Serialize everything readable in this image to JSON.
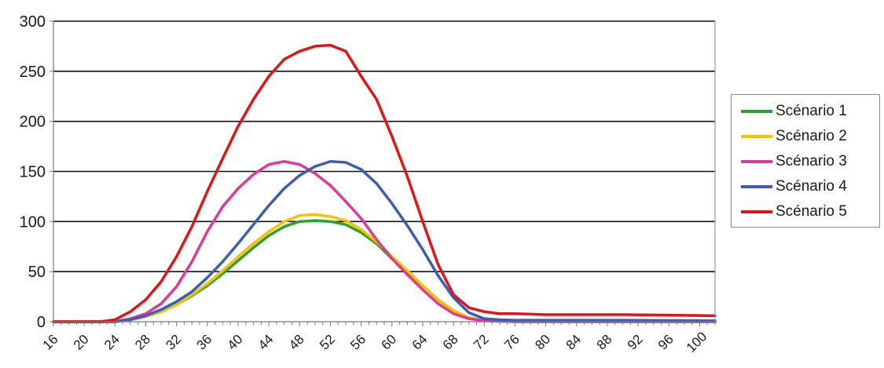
{
  "chart_data": {
    "type": "line",
    "title": "",
    "xlabel": "",
    "ylabel": "",
    "xlim": [
      16,
      102
    ],
    "ylim": [
      0,
      300
    ],
    "y_ticks": [
      0,
      50,
      100,
      150,
      200,
      250,
      300
    ],
    "x_ticks": [
      16,
      20,
      24,
      28,
      32,
      36,
      40,
      44,
      48,
      52,
      56,
      60,
      64,
      68,
      72,
      76,
      80,
      84,
      88,
      92,
      96,
      100
    ],
    "grid": "horizontal",
    "legend_position": "right",
    "series": [
      {
        "name": "Scénario 1",
        "color": "#2aa12a",
        "x": [
          16,
          22,
          24,
          26,
          28,
          30,
          32,
          34,
          36,
          38,
          40,
          42,
          44,
          46,
          48,
          50,
          52,
          54,
          56,
          58,
          60,
          62,
          64,
          66,
          68,
          70,
          72,
          74,
          76,
          80,
          90,
          102
        ],
        "y": [
          0,
          0,
          0,
          2,
          5,
          10,
          17,
          26,
          36,
          48,
          61,
          74,
          86,
          95,
          100,
          101,
          100,
          97,
          89,
          78,
          63,
          50,
          36,
          22,
          11,
          4,
          1,
          0.5,
          0,
          0,
          0,
          0
        ]
      },
      {
        "name": "Scénario 2",
        "color": "#f5c400",
        "x": [
          16,
          22,
          24,
          26,
          28,
          30,
          32,
          34,
          36,
          38,
          40,
          42,
          44,
          46,
          48,
          50,
          52,
          54,
          56,
          58,
          60,
          62,
          64,
          66,
          68,
          70,
          72,
          74,
          76,
          80,
          90,
          102
        ],
        "y": [
          0,
          0,
          0,
          2,
          5,
          10,
          17,
          27,
          38,
          51,
          65,
          78,
          90,
          100,
          106,
          107,
          105,
          101,
          92,
          80,
          65,
          51,
          36,
          22,
          11,
          4,
          1,
          0.5,
          0,
          0,
          0,
          0
        ]
      },
      {
        "name": "Scénario 3",
        "color": "#e0399a",
        "x": [
          16,
          22,
          24,
          26,
          28,
          30,
          32,
          34,
          36,
          38,
          40,
          42,
          44,
          46,
          48,
          50,
          52,
          54,
          56,
          58,
          60,
          62,
          64,
          66,
          68,
          70,
          72,
          74,
          76,
          80,
          90,
          102
        ],
        "y": [
          0,
          0,
          0,
          3,
          8,
          18,
          35,
          60,
          90,
          115,
          133,
          147,
          157,
          160,
          157,
          148,
          136,
          120,
          103,
          82,
          63,
          47,
          32,
          18,
          8,
          3,
          1,
          0.5,
          0,
          0,
          0,
          0
        ]
      },
      {
        "name": "Scénario 4",
        "color": "#3b5eb0",
        "x": [
          16,
          22,
          24,
          26,
          28,
          30,
          32,
          34,
          36,
          38,
          40,
          42,
          44,
          46,
          48,
          50,
          52,
          54,
          56,
          58,
          60,
          62,
          64,
          66,
          68,
          70,
          72,
          74,
          76,
          80,
          90,
          102
        ],
        "y": [
          0,
          0,
          0,
          2,
          6,
          12,
          20,
          30,
          44,
          60,
          78,
          97,
          116,
          133,
          146,
          155,
          160,
          159,
          152,
          138,
          118,
          96,
          72,
          46,
          24,
          9,
          3,
          2,
          1.5,
          1.5,
          1.5,
          1
        ]
      },
      {
        "name": "Scénario 5",
        "color": "#e01515",
        "x": [
          16,
          22,
          24,
          26,
          28,
          30,
          32,
          34,
          36,
          38,
          40,
          42,
          44,
          46,
          48,
          50,
          52,
          54,
          56,
          58,
          60,
          62,
          64,
          66,
          68,
          70,
          72,
          74,
          76,
          80,
          90,
          102
        ],
        "y": [
          0,
          0,
          2,
          10,
          22,
          40,
          65,
          95,
          130,
          163,
          195,
          222,
          245,
          262,
          270,
          275,
          276,
          270,
          245,
          222,
          185,
          145,
          100,
          57,
          27,
          14,
          10,
          8,
          8,
          7,
          7,
          6
        ]
      }
    ]
  }
}
